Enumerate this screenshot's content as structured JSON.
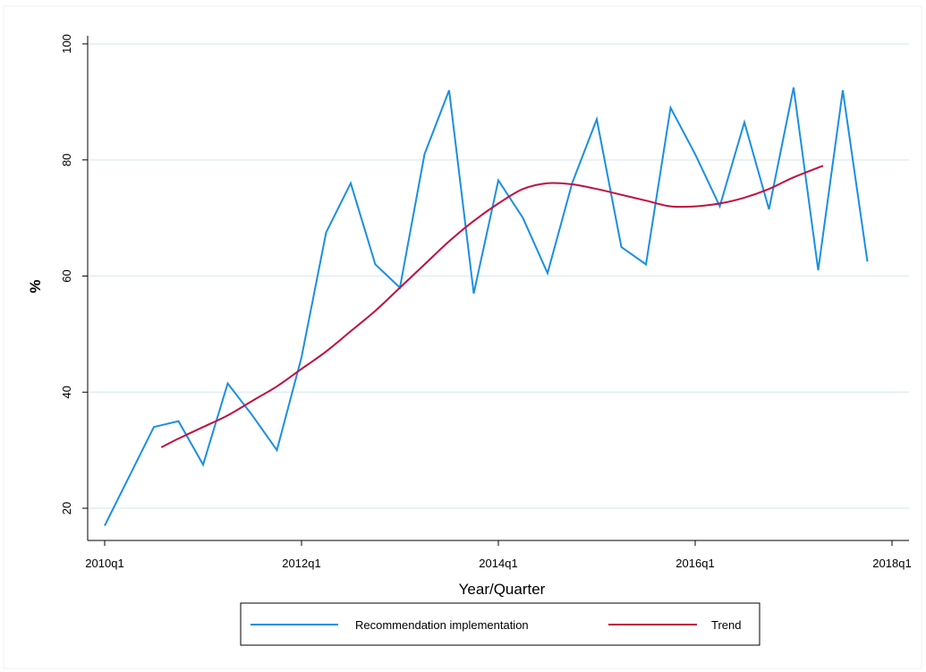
{
  "chart_data": {
    "type": "line",
    "xlabel": "Year/Quarter",
    "ylabel": "%",
    "ylim": [
      15,
      102
    ],
    "yticks": [
      20,
      40,
      60,
      80,
      100
    ],
    "xticks": [
      "2010q1",
      "2012q1",
      "2014q1",
      "2016q1",
      "2018q1"
    ],
    "grid": true,
    "legend_position": "bottom",
    "colors": {
      "implementation": "#1a8fe3",
      "trend": "#c0103f",
      "grid": "#e3eef2",
      "frame": "#eef2f3"
    },
    "series": [
      {
        "name": "Recommendation implementation",
        "x": [
          "2010q1",
          "2010q2",
          "2010q3",
          "2010q4",
          "2011q1",
          "2011q2",
          "2011q3",
          "2011q4",
          "2012q1",
          "2012q2",
          "2012q3",
          "2012q4",
          "2013q1",
          "2013q2",
          "2013q3",
          "2013q4",
          "2014q1",
          "2014q2",
          "2014q3",
          "2014q4",
          "2015q1",
          "2015q2",
          "2015q3",
          "2015q4",
          "2016q1",
          "2016q2",
          "2016q3",
          "2016q4",
          "2017q1",
          "2017q2",
          "2017q3",
          "2017q4"
        ],
        "values": [
          17,
          25.5,
          34,
          35,
          27.5,
          41.5,
          36,
          30,
          46,
          67.5,
          76,
          62,
          58,
          81,
          92,
          57,
          76.5,
          70,
          60.5,
          76,
          87,
          65,
          62,
          89,
          81,
          72,
          86.5,
          71.5,
          92.5,
          61,
          92,
          62.5
        ]
      },
      {
        "name": "Trend",
        "x": [
          "2010q3",
          "2011q1",
          "2011q3",
          "2012q1",
          "2012q3",
          "2013q1",
          "2013q3",
          "2014q1",
          "2014q3",
          "2015q1",
          "2015q3",
          "2016q1",
          "2016q3",
          "2017q1"
        ],
        "values": [
          30.5,
          34,
          38.5,
          44,
          50.5,
          58,
          66,
          72.5,
          76,
          75,
          73,
          72,
          74,
          78
        ]
      }
    ],
    "trend_spline": {
      "x": [
        2.3,
        3,
        4,
        5,
        6,
        7,
        8,
        9,
        10,
        11,
        12,
        13,
        14,
        15,
        16,
        17,
        18,
        19,
        20,
        21,
        22,
        23,
        24,
        25,
        26,
        27,
        28,
        29.2
      ],
      "values": [
        30.5,
        32,
        34,
        36,
        38.5,
        41,
        44,
        47,
        50.5,
        54,
        58,
        62,
        66,
        69.5,
        72.5,
        75,
        76,
        75.8,
        75,
        74,
        73,
        72,
        72,
        72.5,
        73.5,
        75,
        77,
        79
      ]
    }
  }
}
